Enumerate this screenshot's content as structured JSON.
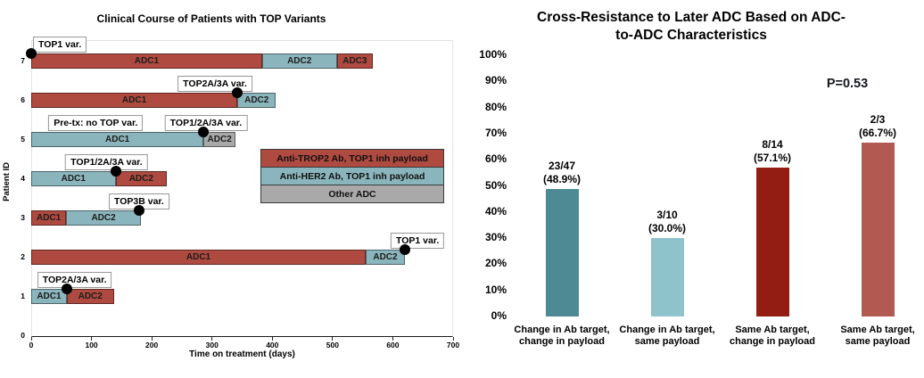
{
  "chart_data": [
    {
      "type": "swimmer_horizontal_bar",
      "title": "Clinical Course of Patients with TOP Variants",
      "xlabel": "Time on treatment (days)",
      "ylabel": "Patient ID",
      "xlim": [
        0,
        700
      ],
      "xticks": [
        0,
        100,
        200,
        300,
        400,
        500,
        600,
        700
      ],
      "yticks": [
        0,
        1,
        2,
        3,
        4,
        5,
        6,
        7
      ],
      "grid": false,
      "colors": {
        "anti_trop2": "#ae4a40",
        "anti_her2": "#8bb5bc",
        "other": "#a9a9a9",
        "dot": "#000000"
      },
      "legend": {
        "position": "inside-right",
        "items": [
          {
            "label": "Anti-TROP2 Ab, TOP1 inh payload",
            "key": "anti_trop2"
          },
          {
            "label": "Anti-HER2 Ab, TOP1 inh payload",
            "key": "anti_her2"
          },
          {
            "label": "Other ADC",
            "key": "other"
          }
        ]
      },
      "patients": [
        {
          "id": 7,
          "segments": [
            {
              "label": "ADC1",
              "start": 0,
              "end": 383,
              "key": "anti_trop2"
            },
            {
              "label": "ADC2",
              "start": 383,
              "end": 507,
              "key": "anti_her2"
            },
            {
              "label": "ADC3",
              "start": 507,
              "end": 567,
              "key": "anti_trop2"
            }
          ],
          "annotations": [
            {
              "text": "TOP1 var.",
              "dot_day": 0,
              "label_day": 3,
              "align": "left"
            }
          ]
        },
        {
          "id": 6,
          "segments": [
            {
              "label": "ADC1",
              "start": 0,
              "end": 342,
              "key": "anti_trop2"
            },
            {
              "label": "ADC2",
              "start": 342,
              "end": 406,
              "key": "anti_her2"
            }
          ],
          "annotations": [
            {
              "text": "TOP2A/3A var.",
              "dot_day": 342,
              "label_day": 305,
              "align": "center"
            }
          ]
        },
        {
          "id": 5,
          "segments": [
            {
              "label": "ADC1",
              "start": 0,
              "end": 286,
              "key": "anti_her2"
            },
            {
              "label": "ADC2",
              "start": 286,
              "end": 339,
              "key": "other"
            }
          ],
          "annotations": [
            {
              "text": "Pre-tx: no TOP var.",
              "dot_day": null,
              "label_day": 107,
              "align": "center"
            },
            {
              "text": "TOP1/2A/3A var.",
              "dot_day": 286,
              "label_day": 290,
              "align": "center"
            }
          ]
        },
        {
          "id": 4,
          "segments": [
            {
              "label": "ADC1",
              "start": 0,
              "end": 140,
              "key": "anti_her2"
            },
            {
              "label": "ADC2",
              "start": 140,
              "end": 225,
              "key": "anti_trop2"
            }
          ],
          "annotations": [
            {
              "text": "TOP1/2A/3A var.",
              "dot_day": 140,
              "label_day": 125,
              "align": "center"
            }
          ]
        },
        {
          "id": 3,
          "segments": [
            {
              "label": "ADC1",
              "start": 0,
              "end": 58,
              "key": "anti_trop2"
            },
            {
              "label": "ADC2",
              "start": 58,
              "end": 182,
              "key": "anti_her2"
            }
          ],
          "annotations": [
            {
              "text": "TOP3B var.",
              "dot_day": 179,
              "label_day": 179,
              "align": "center"
            }
          ]
        },
        {
          "id": 2,
          "segments": [
            {
              "label": "ADC1",
              "start": 0,
              "end": 555,
              "key": "anti_trop2"
            },
            {
              "label": "ADC2",
              "start": 555,
              "end": 620,
              "key": "anti_her2"
            }
          ],
          "annotations": [
            {
              "text": "TOP1 var.",
              "dot_day": 620,
              "label_day": 641,
              "align": "center"
            }
          ]
        },
        {
          "id": 1,
          "segments": [
            {
              "label": "ADC1",
              "start": 0,
              "end": 59,
              "key": "anti_her2"
            },
            {
              "label": "ADC2",
              "start": 59,
              "end": 137,
              "key": "anti_trop2"
            }
          ],
          "annotations": [
            {
              "text": "TOP2A/3A var.",
              "dot_day": 59,
              "label_day": 72,
              "align": "center"
            }
          ]
        }
      ]
    },
    {
      "type": "bar",
      "title": "Cross-Resistance to Later ADC Based on ADC-to-ADC Characteristics",
      "title_lines": [
        "Cross-Resistance to Later ADC Based on ADC-",
        "to-ADC Characteristics"
      ],
      "annotation": "P=0.53",
      "ylim": [
        0,
        100
      ],
      "ytick_step": 10,
      "ytick_suffix": "%",
      "grid": false,
      "categories": [
        "Change in Ab target, change in payload",
        "Change in Ab target, same payload",
        "Same Ab target, change in payload",
        "Same Ab target, same payload"
      ],
      "values": [
        48.9,
        30.0,
        57.1,
        66.7
      ],
      "bar_labels": [
        {
          "count": "23/47",
          "pct": "(48.9%)"
        },
        {
          "count": "3/10",
          "pct": "(30.0%)"
        },
        {
          "count": "8/14",
          "pct": "(57.1%)"
        },
        {
          "count": "2/3",
          "pct": "(66.7%)"
        }
      ],
      "bar_colors": [
        "#4e8a94",
        "#8ec3cb",
        "#941d13",
        "#b25a51"
      ]
    }
  ]
}
